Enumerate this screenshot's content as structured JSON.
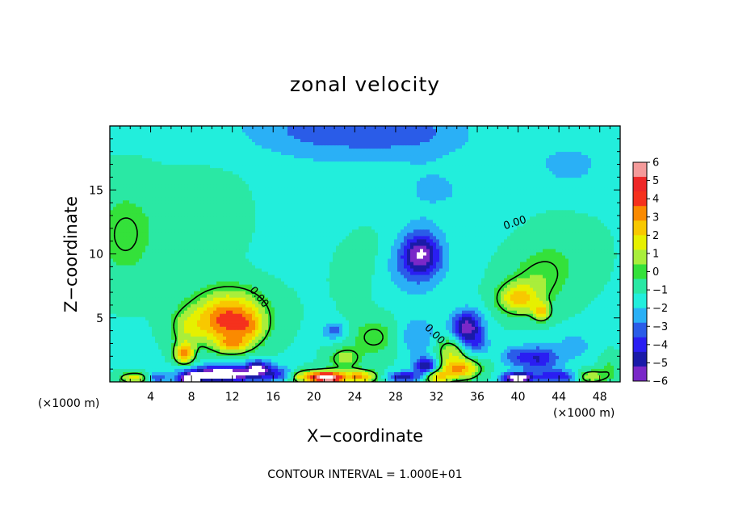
{
  "chart_data": {
    "type": "heatmap",
    "title": "zonal velocity",
    "xlabel": "X−coordinate",
    "ylabel": "Z−coordinate",
    "x_unit_left": "(×1000 m)",
    "x_unit_right": "(×1000 m)",
    "xlim": [
      0,
      50
    ],
    "ylim": [
      0,
      20
    ],
    "xticks": [
      4,
      8,
      12,
      16,
      20,
      24,
      28,
      32,
      36,
      40,
      44,
      48
    ],
    "yticks": [
      5,
      10,
      15
    ],
    "footer": "CONTOUR INTERVAL =  1.000E+01",
    "colorbar": {
      "levels": [
        "6",
        "5",
        "4",
        "3",
        "2",
        "1",
        "0",
        "−1",
        "−2",
        "−3",
        "−4",
        "−5",
        "−6"
      ],
      "range": [
        -6,
        6
      ],
      "colors": [
        "#f49a9a",
        "#ee2727",
        "#f5311d",
        "#fa8a00",
        "#f8c800",
        "#e6f000",
        "#a9ee3b",
        "#34e13a",
        "#2ae8a4",
        "#22eedc",
        "#2ab0f6",
        "#2a5ce8",
        "#2a1ef2",
        "#1a1aa8",
        "#7a28c8"
      ]
    },
    "contour_labels": [
      {
        "text": "0.00",
        "x": 14.6,
        "y": 6.6,
        "rotate": 50
      },
      {
        "text": "0.00",
        "x": 31.8,
        "y": 3.7,
        "rotate": 45
      },
      {
        "text": "0.00",
        "x": 39.7,
        "y": 12.4,
        "rotate": -18
      }
    ],
    "features": [
      {
        "x": 22,
        "y": 19.8,
        "sx": 9,
        "sy": 2.2,
        "v": -2.0
      },
      {
        "x": 30,
        "y": 19.5,
        "sx": 6,
        "sy": 1.6,
        "v": -1.0
      },
      {
        "x": 1.5,
        "y": 11.5,
        "sx": 3,
        "sy": 3.5,
        "v": 1.4
      },
      {
        "x": 10,
        "y": 13,
        "sx": 5,
        "sy": 3,
        "v": 0.6
      },
      {
        "x": 20,
        "y": 13,
        "sx": 6,
        "sy": 4,
        "v": -0.6
      },
      {
        "x": 32,
        "y": 15,
        "sx": 6,
        "sy": 3,
        "v": -0.8
      },
      {
        "x": 45,
        "y": 17,
        "sx": 4,
        "sy": 2,
        "v": -1.0
      },
      {
        "x": 30.5,
        "y": 10.0,
        "sx": 1.8,
        "sy": 1.6,
        "v": -3.8
      },
      {
        "x": 29.5,
        "y": 9.0,
        "sx": 3.5,
        "sy": 2.5,
        "v": -1.5
      },
      {
        "x": 25.0,
        "y": 10.0,
        "sx": 3.5,
        "sy": 3.0,
        "v": 0.8
      },
      {
        "x": 11.5,
        "y": 4.6,
        "sx": 3.2,
        "sy": 1.8,
        "v": 4.6
      },
      {
        "x": 13.8,
        "y": 4.2,
        "sx": 1.4,
        "sy": 1.2,
        "v": 1.6
      },
      {
        "x": 11.8,
        "y": 6.2,
        "sx": 4.0,
        "sy": 1.8,
        "v": 1.4
      },
      {
        "x": 7.3,
        "y": 2.2,
        "sx": 0.9,
        "sy": 0.8,
        "v": 4.5
      },
      {
        "x": 12.0,
        "y": 2.9,
        "sx": 1.5,
        "sy": 0.6,
        "v": 2.5
      },
      {
        "x": 7.5,
        "y": 4.2,
        "sx": 1.6,
        "sy": 1.4,
        "v": 1.6
      },
      {
        "x": 11.0,
        "y": 0.6,
        "sx": 3.4,
        "sy": 0.6,
        "v": -6.5
      },
      {
        "x": 14.5,
        "y": 1.1,
        "sx": 1.2,
        "sy": 0.6,
        "v": -4.0
      },
      {
        "x": 16.5,
        "y": 0.6,
        "sx": 1.5,
        "sy": 0.6,
        "v": -2.5
      },
      {
        "x": 7.8,
        "y": 0.2,
        "sx": 1.0,
        "sy": 0.4,
        "v": -6.0
      },
      {
        "x": 2.5,
        "y": 0.3,
        "sx": 1.5,
        "sy": 0.4,
        "v": 3.0
      },
      {
        "x": 4.5,
        "y": 0.3,
        "sx": 1.0,
        "sy": 0.4,
        "v": -2.5
      },
      {
        "x": 19.5,
        "y": 0.4,
        "sx": 2.0,
        "sy": 0.5,
        "v": 3.5
      },
      {
        "x": 21.5,
        "y": 0.3,
        "sx": 1.5,
        "sy": 0.5,
        "v": 6.5
      },
      {
        "x": 24.5,
        "y": 0.4,
        "sx": 1.6,
        "sy": 0.5,
        "v": 4.0
      },
      {
        "x": 23.0,
        "y": 1.8,
        "sx": 1.5,
        "sy": 0.8,
        "v": 2.0
      },
      {
        "x": 26.0,
        "y": 3.5,
        "sx": 2.5,
        "sy": 1.5,
        "v": 1.5
      },
      {
        "x": 30.0,
        "y": 3.5,
        "sx": 2.0,
        "sy": 1.5,
        "v": -1.6
      },
      {
        "x": 33.5,
        "y": 2.5,
        "sx": 1.5,
        "sy": 1.0,
        "v": 2.5
      },
      {
        "x": 35.0,
        "y": 4.2,
        "sx": 1.5,
        "sy": 1.3,
        "v": -4.6
      },
      {
        "x": 36.0,
        "y": 2.8,
        "sx": 1.2,
        "sy": 0.8,
        "v": -1.5
      },
      {
        "x": 34.2,
        "y": 1.0,
        "sx": 2.0,
        "sy": 0.8,
        "v": 4.2
      },
      {
        "x": 31.0,
        "y": 1.2,
        "sx": 1.2,
        "sy": 0.7,
        "v": -4.0
      },
      {
        "x": 28.8,
        "y": 0.4,
        "sx": 1.5,
        "sy": 0.4,
        "v": -3.5
      },
      {
        "x": 22.0,
        "y": 4.0,
        "sx": 1.2,
        "sy": 0.7,
        "v": -2.0
      },
      {
        "x": 32.0,
        "y": 0.4,
        "sx": 1.2,
        "sy": 0.5,
        "v": 3.5
      },
      {
        "x": 40.0,
        "y": 6.5,
        "sx": 2.0,
        "sy": 1.2,
        "v": 3.3
      },
      {
        "x": 42.3,
        "y": 5.5,
        "sx": 0.9,
        "sy": 0.7,
        "v": 3.0
      },
      {
        "x": 42.0,
        "y": 8.0,
        "sx": 3.0,
        "sy": 2.0,
        "v": 1.3
      },
      {
        "x": 44.0,
        "y": 10.0,
        "sx": 3.5,
        "sy": 2.5,
        "v": 0.6
      },
      {
        "x": 39.5,
        "y": 2.0,
        "sx": 1.3,
        "sy": 0.8,
        "v": -1.5
      },
      {
        "x": 42.0,
        "y": 1.8,
        "sx": 2.0,
        "sy": 1.0,
        "v": -3.2
      },
      {
        "x": 45.5,
        "y": 2.8,
        "sx": 1.5,
        "sy": 1.0,
        "v": -1.5
      },
      {
        "x": 40.0,
        "y": 0.3,
        "sx": 1.5,
        "sy": 0.4,
        "v": -6.0
      },
      {
        "x": 44.0,
        "y": 0.4,
        "sx": 2.0,
        "sy": 0.5,
        "v": -3.0
      },
      {
        "x": 47.0,
        "y": 0.4,
        "sx": 1.5,
        "sy": 0.5,
        "v": 2.5
      },
      {
        "x": 49.0,
        "y": 1.0,
        "sx": 1.0,
        "sy": 1.0,
        "v": 1.0
      }
    ]
  }
}
